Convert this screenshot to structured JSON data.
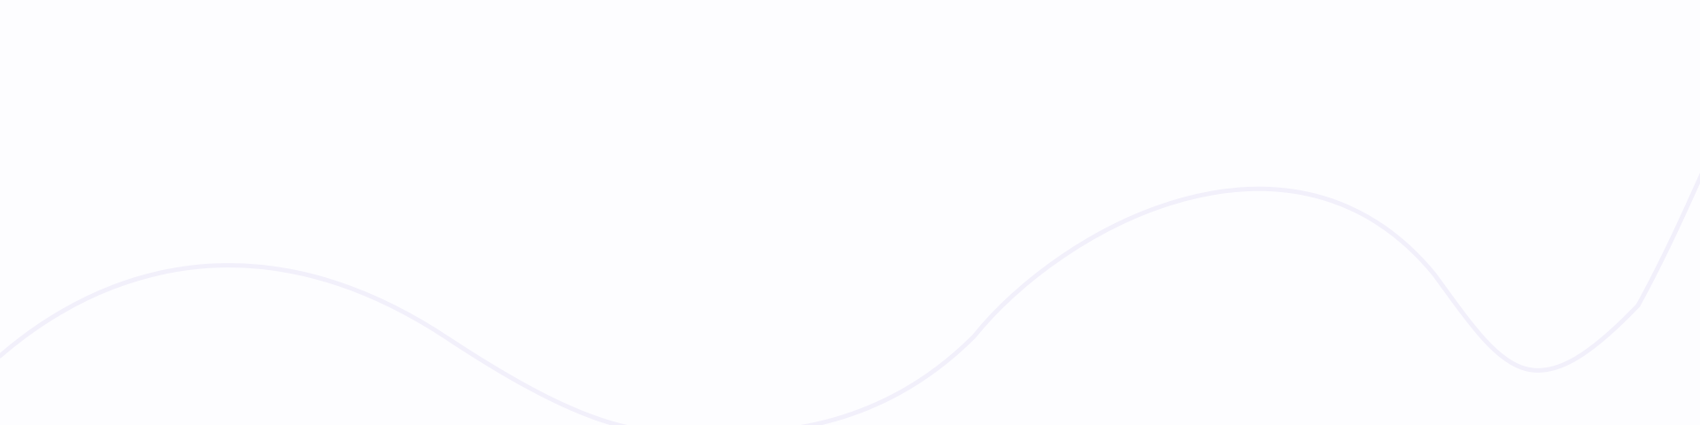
{
  "colors": {
    "background": "#fdfdff",
    "wave_stroke": "#f2f0fb"
  },
  "decoration": {
    "icon": "wave-line-decoration"
  }
}
